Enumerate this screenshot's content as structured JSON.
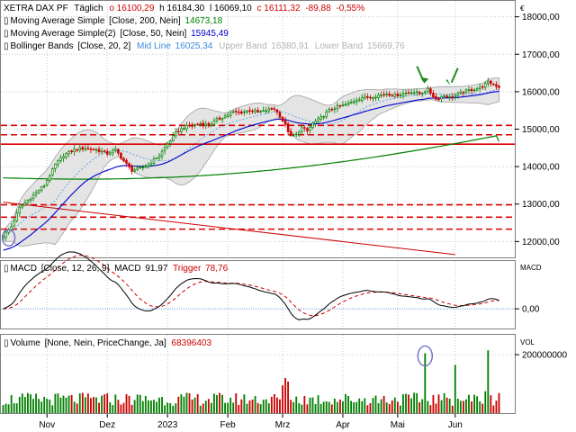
{
  "chart_data": {
    "type": "candlestick",
    "panels": {
      "price": {
        "instrument": "XETRA DAX PF",
        "period": "Täglich",
        "ohlc_labels": {
          "open": "o 16100,29",
          "high": "h 16184,30",
          "low": "l 16069,10",
          "close": "c 16111,32",
          "change": "-89,88",
          "change_pct": "-0,55%"
        },
        "indicators": [
          {
            "label": "Moving Average Simple",
            "params": "[Close, 200, Nein]",
            "value": "14673,18",
            "color": "#008000"
          },
          {
            "label": "Moving Average Simple(2)",
            "params": "[Close, 50, Nein]",
            "value": "15945,49",
            "color": "#0000cc"
          },
          {
            "label": "Bollinger Bands",
            "params": "[Close, 20, 2]",
            "mid_label": "Mid Line",
            "mid_value": "16025,34",
            "upper_label": "Upper Band",
            "upper_value": "16380,91",
            "lower_label": "Lower Band",
            "lower_value": "15669,76"
          }
        ],
        "unit": "€",
        "y_ticks": [
          "18000,00",
          "17000,00",
          "16000,00",
          "15000,00",
          "14000,00",
          "13000,00",
          "12000,00"
        ],
        "y_tick_values": [
          18000,
          17000,
          16000,
          15000,
          14000,
          13000,
          12000
        ],
        "ylim": [
          11600,
          18400
        ],
        "horizontal_levels": [
          {
            "value": 15100,
            "style": "dashed"
          },
          {
            "value": 14850,
            "style": "dashed"
          },
          {
            "value": 14600,
            "style": "solid"
          },
          {
            "value": 12980,
            "style": "dashed"
          },
          {
            "value": 12650,
            "style": "dashed"
          },
          {
            "value": 12330,
            "style": "dashed"
          }
        ],
        "trendline": {
          "from": {
            "x": 0,
            "y": 13050
          },
          "to": {
            "x": 165,
            "y": 11650
          }
        },
        "colors": {
          "up": "#008000",
          "down": "#cc0000",
          "ma200": "#008000",
          "ma50": "#0000cc",
          "levels": "#dd0000",
          "band_fill": "#e4e4e4",
          "band_line": "#a0a0a0",
          "mid": "#56a0e8",
          "arrows": "#1e8c1e"
        }
      },
      "macd": {
        "label": "MACD",
        "params": "[Close, 12, 26, 9]",
        "value_label": "MACD",
        "value": "91,97",
        "trigger_label": "Trigger",
        "trigger_value": "78,76",
        "unit": "MACD",
        "y_ticks": [
          "0,00"
        ],
        "y_tick_values": [
          0
        ],
        "ylim": [
          -200,
          500
        ]
      },
      "volume": {
        "label": "Volume",
        "params": "[None, Nein, PriceChange, Ja]",
        "value": "68396403",
        "unit": "VOL",
        "y_ticks": [
          "200000000"
        ],
        "y_tick_values": [
          200000000
        ],
        "ylim": [
          0,
          265000000
        ]
      }
    },
    "x_labels": [
      {
        "label": "Nov",
        "index": 16
      },
      {
        "label": "Dez",
        "index": 38
      },
      {
        "label": "2023",
        "index": 60
      },
      {
        "label": "Feb",
        "index": 82
      },
      {
        "label": "Mrz",
        "index": 102
      },
      {
        "label": "Apr",
        "index": 124
      },
      {
        "label": "Mai",
        "index": 144
      },
      {
        "label": "Jun",
        "index": 165
      }
    ],
    "x_count": 182,
    "close_keyframes": [
      [
        0,
        12150
      ],
      [
        3,
        12400
      ],
      [
        6,
        12900
      ],
      [
        9,
        13100
      ],
      [
        12,
        13300
      ],
      [
        15,
        13500
      ],
      [
        19,
        14050
      ],
      [
        22,
        14300
      ],
      [
        26,
        14450
      ],
      [
        30,
        14500
      ],
      [
        34,
        14450
      ],
      [
        38,
        14350
      ],
      [
        41,
        14450
      ],
      [
        44,
        14150
      ],
      [
        47,
        13900
      ],
      [
        50,
        13950
      ],
      [
        53,
        14050
      ],
      [
        57,
        14300
      ],
      [
        60,
        14600
      ],
      [
        63,
        14900
      ],
      [
        66,
        15050
      ],
      [
        69,
        15100
      ],
      [
        72,
        15150
      ],
      [
        75,
        15100
      ],
      [
        78,
        15250
      ],
      [
        81,
        15350
      ],
      [
        84,
        15450
      ],
      [
        87,
        15450
      ],
      [
        90,
        15500
      ],
      [
        93,
        15450
      ],
      [
        96,
        15500
      ],
      [
        99,
        15550
      ],
      [
        101,
        15350
      ],
      [
        103,
        15100
      ],
      [
        105,
        14800
      ],
      [
        107,
        14850
      ],
      [
        109,
        15050
      ],
      [
        111,
        14950
      ],
      [
        113,
        15150
      ],
      [
        116,
        15300
      ],
      [
        119,
        15500
      ],
      [
        122,
        15600
      ],
      [
        125,
        15650
      ],
      [
        128,
        15750
      ],
      [
        131,
        15850
      ],
      [
        134,
        15850
      ],
      [
        137,
        15900
      ],
      [
        140,
        15950
      ],
      [
        143,
        15900
      ],
      [
        146,
        15950
      ],
      [
        149,
        16000
      ],
      [
        152,
        15950
      ],
      [
        155,
        16050
      ],
      [
        158,
        15800
      ],
      [
        161,
        15900
      ],
      [
        163,
        15850
      ],
      [
        165,
        15900
      ],
      [
        168,
        16000
      ],
      [
        171,
        16050
      ],
      [
        174,
        16100
      ],
      [
        177,
        16250
      ],
      [
        179,
        16200
      ],
      [
        181,
        16111
      ]
    ],
    "volume_spikes": [
      {
        "index": 102,
        "value": 95000000
      },
      {
        "index": 103,
        "value": 120000000
      },
      {
        "index": 104,
        "value": 108000000
      },
      {
        "index": 154,
        "value": 205000000
      },
      {
        "index": 165,
        "value": 165000000
      },
      {
        "index": 176,
        "value": 75000000
      },
      {
        "index": 177,
        "value": 215000000
      }
    ]
  }
}
